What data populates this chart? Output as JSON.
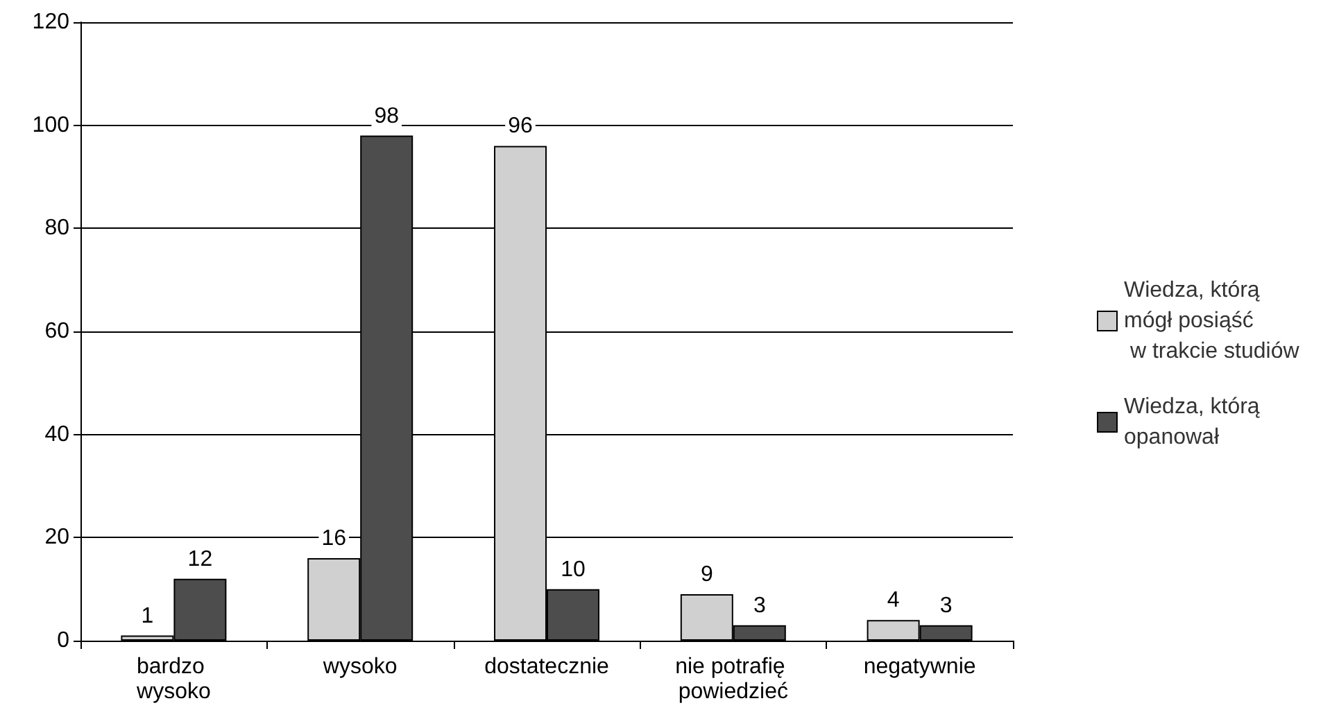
{
  "chart_data": {
    "type": "bar",
    "categories": [
      "bardzo wysoko",
      "wysoko",
      "dostatecznie",
      "nie potrafię powiedzieć",
      "negatywnie"
    ],
    "series": [
      {
        "name": "Wiedza, którą mógł posiąść w trakcie studiów",
        "color": "#d0d0d0",
        "values": [
          1,
          16,
          96,
          9,
          4
        ]
      },
      {
        "name": "Wiedza, którą opanował",
        "color": "#4d4d4d",
        "values": [
          12,
          98,
          10,
          3,
          3
        ]
      }
    ],
    "ylim": [
      0,
      120
    ],
    "yticks": [
      0,
      20,
      40,
      60,
      80,
      100,
      120
    ],
    "grid": "y",
    "legend": "right",
    "data_labels": true
  }
}
